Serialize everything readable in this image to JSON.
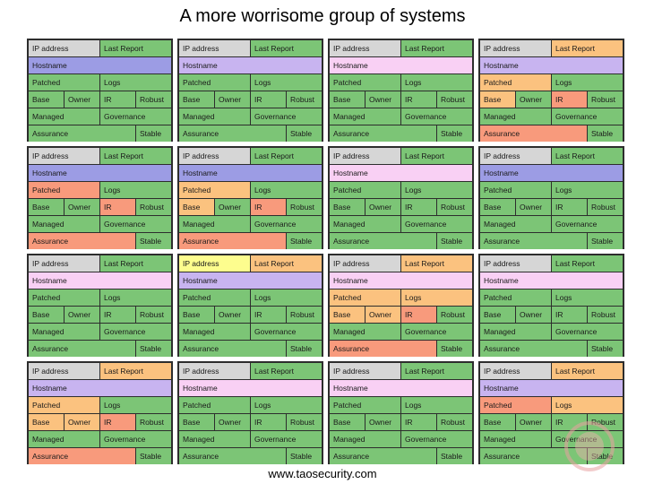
{
  "title": "A more worrisome group of systems",
  "footer": "www.taosecurity.com",
  "labels": {
    "ip": "IP address",
    "report": "Last Report",
    "host": "Hostname",
    "patched": "Patched",
    "logs": "Logs",
    "base": "Base",
    "owner": "Owner",
    "ir": "IR",
    "robust": "Robust",
    "managed": "Managed",
    "gov": "Governance",
    "assurance": "Assurance",
    "stable": "Stable"
  },
  "colors": {
    "grey": "#d6d6d6",
    "green": "#7cc576",
    "orange": "#fbc27f",
    "red": "#f89a7c",
    "lavender": "#c8b4f0",
    "blue": "#9c9ce4",
    "pink": "#f9d0f4",
    "yellow": "#fdfd8e"
  },
  "cards": [
    {
      "ip": "grey",
      "report": "green",
      "host": "blue",
      "patched": "green",
      "logs": "green",
      "base": "green",
      "owner": "green",
      "ir": "green",
      "robust": "green",
      "managed": "green",
      "gov": "green",
      "assurance": "green",
      "stable": "green"
    },
    {
      "ip": "grey",
      "report": "green",
      "host": "lav",
      "patched": "green",
      "logs": "green",
      "base": "green",
      "owner": "green",
      "ir": "green",
      "robust": "green",
      "managed": "green",
      "gov": "green",
      "assurance": "green",
      "stable": "green"
    },
    {
      "ip": "grey",
      "report": "green",
      "host": "pink",
      "patched": "green",
      "logs": "green",
      "base": "green",
      "owner": "green",
      "ir": "green",
      "robust": "green",
      "managed": "green",
      "gov": "green",
      "assurance": "green",
      "stable": "green"
    },
    {
      "ip": "grey",
      "report": "orange",
      "host": "lav",
      "patched": "orange",
      "logs": "green",
      "base": "orange",
      "owner": "green",
      "ir": "red",
      "robust": "green",
      "managed": "green",
      "gov": "green",
      "assurance": "red",
      "stable": "green"
    },
    {
      "ip": "grey",
      "report": "green",
      "host": "blue",
      "patched": "red",
      "logs": "green",
      "base": "green",
      "owner": "green",
      "ir": "red",
      "robust": "green",
      "managed": "green",
      "gov": "green",
      "assurance": "red",
      "stable": "green"
    },
    {
      "ip": "grey",
      "report": "green",
      "host": "blue",
      "patched": "orange",
      "logs": "green",
      "base": "orange",
      "owner": "green",
      "ir": "red",
      "robust": "green",
      "managed": "green",
      "gov": "green",
      "assurance": "red",
      "stable": "green"
    },
    {
      "ip": "grey",
      "report": "green",
      "host": "pink",
      "patched": "green",
      "logs": "green",
      "base": "green",
      "owner": "green",
      "ir": "green",
      "robust": "green",
      "managed": "green",
      "gov": "green",
      "assurance": "green",
      "stable": "green"
    },
    {
      "ip": "grey",
      "report": "green",
      "host": "blue",
      "patched": "green",
      "logs": "green",
      "base": "green",
      "owner": "green",
      "ir": "green",
      "robust": "green",
      "managed": "green",
      "gov": "green",
      "assurance": "green",
      "stable": "green"
    },
    {
      "ip": "grey",
      "report": "green",
      "host": "pink",
      "patched": "green",
      "logs": "green",
      "base": "green",
      "owner": "green",
      "ir": "green",
      "robust": "green",
      "managed": "green",
      "gov": "green",
      "assurance": "green",
      "stable": "green"
    },
    {
      "ip": "yellow",
      "report": "orange",
      "host": "lav",
      "patched": "green",
      "logs": "green",
      "base": "green",
      "owner": "green",
      "ir": "green",
      "robust": "green",
      "managed": "green",
      "gov": "green",
      "assurance": "green",
      "stable": "green"
    },
    {
      "ip": "grey",
      "report": "orange",
      "host": "pink",
      "patched": "orange",
      "logs": "orange",
      "base": "orange",
      "owner": "orange",
      "ir": "red",
      "robust": "green",
      "managed": "green",
      "gov": "green",
      "assurance": "red",
      "stable": "green"
    },
    {
      "ip": "grey",
      "report": "green",
      "host": "pink",
      "patched": "green",
      "logs": "green",
      "base": "green",
      "owner": "green",
      "ir": "green",
      "robust": "green",
      "managed": "green",
      "gov": "green",
      "assurance": "green",
      "stable": "green"
    },
    {
      "ip": "grey",
      "report": "orange",
      "host": "lav",
      "patched": "orange",
      "logs": "green",
      "base": "orange",
      "owner": "orange",
      "ir": "red",
      "robust": "green",
      "managed": "green",
      "gov": "green",
      "assurance": "red",
      "stable": "green"
    },
    {
      "ip": "grey",
      "report": "green",
      "host": "pink",
      "patched": "green",
      "logs": "green",
      "base": "green",
      "owner": "green",
      "ir": "green",
      "robust": "green",
      "managed": "green",
      "gov": "green",
      "assurance": "green",
      "stable": "green"
    },
    {
      "ip": "grey",
      "report": "green",
      "host": "pink",
      "patched": "green",
      "logs": "green",
      "base": "green",
      "owner": "green",
      "ir": "green",
      "robust": "green",
      "managed": "green",
      "gov": "green",
      "assurance": "green",
      "stable": "green"
    },
    {
      "ip": "grey",
      "report": "orange",
      "host": "lav",
      "patched": "red",
      "logs": "orange",
      "base": "green",
      "owner": "green",
      "ir": "green",
      "robust": "green",
      "managed": "green",
      "gov": "green",
      "assurance": "green",
      "stable": "green"
    }
  ]
}
